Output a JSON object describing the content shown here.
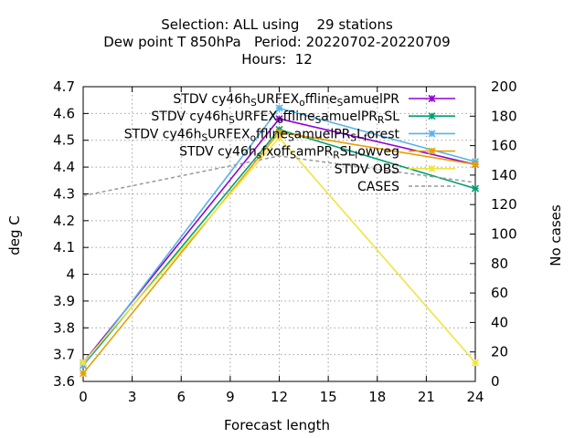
{
  "chart_data": {
    "type": "line",
    "title_lines": [
      "Selection: ALL using    29 stations",
      "Dew point T 850hPa   Period: 20220702-20220709",
      "Hours:  12"
    ],
    "xlabel": "Forecast length",
    "ylabel": "deg C",
    "y2label": "No cases",
    "xlim": [
      0,
      24
    ],
    "xticks": [
      0,
      3,
      6,
      9,
      12,
      15,
      18,
      21,
      24
    ],
    "ylim": [
      3.6,
      4.7
    ],
    "yticks": [
      "3.6",
      "3.7",
      "3.8",
      "3.9",
      "4",
      "4.1",
      "4.2",
      "4.3",
      "4.4",
      "4.5",
      "4.6",
      "4.7"
    ],
    "y2lim": [
      0,
      200
    ],
    "y2ticks": [
      "0",
      "20",
      "40",
      "60",
      "80",
      "100",
      "120",
      "140",
      "160",
      "180",
      "200"
    ],
    "grid": true,
    "legend_position": "top-right",
    "series": [
      {
        "name": "STDV cy46h_SURFEX_offline_SamuelPR",
        "legend_parts": [
          [
            "STDV cy46h",
            ""
          ],
          [
            "S",
            "sub"
          ],
          [
            "URFEX",
            ""
          ],
          [
            "o",
            "sub"
          ],
          [
            "ffline",
            ""
          ],
          [
            "S",
            "sub"
          ],
          [
            "amuelPR",
            ""
          ]
        ],
        "color": "#9400d3",
        "marker": "x",
        "axis": "y1",
        "x": [
          0,
          12,
          24
        ],
        "y": [
          3.67,
          4.58,
          4.41
        ]
      },
      {
        "name": "STDV cy46h_SURFEX_offline_SamuelPR_RSL",
        "legend_parts": [
          [
            "STDV cy46h",
            ""
          ],
          [
            "S",
            "sub"
          ],
          [
            "URFEX",
            ""
          ],
          [
            "o",
            "sub"
          ],
          [
            "ffline",
            ""
          ],
          [
            "S",
            "sub"
          ],
          [
            "amuelPR",
            ""
          ],
          [
            "R",
            "sub"
          ],
          [
            "SL",
            ""
          ]
        ],
        "color": "#009e73",
        "marker": "x",
        "axis": "y1",
        "x": [
          0,
          12,
          24
        ],
        "y": [
          3.66,
          4.54,
          4.32
        ]
      },
      {
        "name": "STDV cy46h_SURFEX_offline_SamuelPR_SL_forest",
        "legend_parts": [
          [
            "STDV cy46h",
            ""
          ],
          [
            "S",
            "sub"
          ],
          [
            "URFEX",
            ""
          ],
          [
            "o",
            "sub"
          ],
          [
            "ffline",
            ""
          ],
          [
            "S",
            "sub"
          ],
          [
            "amuelPR",
            ""
          ],
          [
            "S",
            "sub"
          ],
          [
            "L",
            ""
          ],
          [
            "f",
            "sub"
          ],
          [
            "orest",
            ""
          ]
        ],
        "color": "#56b4e9",
        "marker": "x",
        "axis": "y1",
        "x": [
          0,
          12,
          24
        ],
        "y": [
          3.66,
          4.62,
          4.42
        ]
      },
      {
        "name": "STDV cy46h_sfxoff_SamPR_SL_lowveg",
        "legend_parts": [
          [
            "STDV cy46h",
            ""
          ],
          [
            "s",
            "sub"
          ],
          [
            "fxoff",
            ""
          ],
          [
            "S",
            "sub"
          ],
          [
            "amPR",
            ""
          ],
          [
            "R",
            "sub"
          ],
          [
            "SL",
            ""
          ],
          [
            "l",
            "sub"
          ],
          [
            "owveg",
            ""
          ]
        ],
        "color": "#e69f00",
        "marker": "x",
        "axis": "y1",
        "x": [
          0,
          12,
          24
        ],
        "y": [
          3.63,
          4.53,
          4.41
        ]
      },
      {
        "name": "STDV OBS",
        "legend_parts": [
          [
            "STDV OBS",
            ""
          ]
        ],
        "color": "#f0e442",
        "marker": "x",
        "axis": "y1",
        "x": [
          0,
          12,
          24
        ],
        "y": [
          3.67,
          4.51,
          3.67
        ]
      },
      {
        "name": "CASES",
        "legend_parts": [
          [
            "CASES",
            ""
          ]
        ],
        "color": "#999999",
        "marker": "none",
        "dashed": true,
        "axis": "y2",
        "x": [
          0,
          12,
          24
        ],
        "y": [
          126,
          153,
          135
        ]
      }
    ]
  }
}
